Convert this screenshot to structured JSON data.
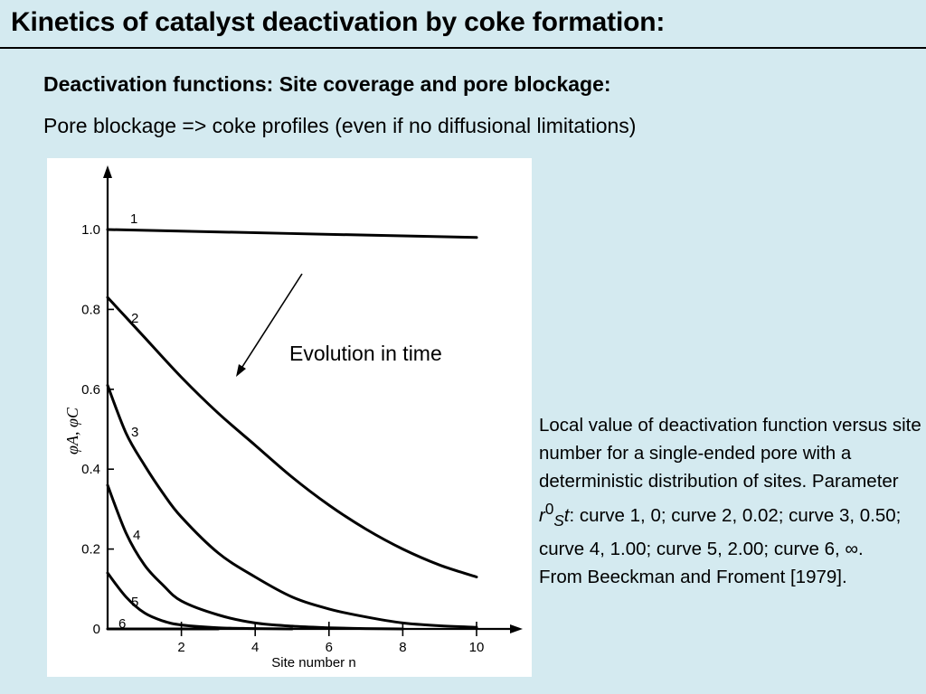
{
  "slide": {
    "title": "Kinetics of catalyst deactivation by coke formation:",
    "subtitle": "Deactivation functions: Site coverage and pore blockage:",
    "line2": "Pore blockage => coke profiles (even if no diffusional limitations)"
  },
  "annotation": {
    "arrow_label": "Evolution in time"
  },
  "caption": {
    "text_1": "Local value of deactivation function versus site number for a single-ended pore with a deterministic distribution of sites. Parameter ",
    "param_r": "r",
    "param_sup": "0",
    "param_sub": "S",
    "param_t": "t",
    "text_2": ": curve 1, 0; curve 2, 0.02; curve 3, 0.50; curve 4, 1.00; curve 5, 2.00; curve 6, ∞.",
    "source": "From Beeckman and Froment [1979]."
  },
  "chart_data": {
    "type": "line",
    "xlabel": "Site number n",
    "ylabel": "φA, φC",
    "xlim": [
      0,
      10
    ],
    "ylim": [
      0,
      1.0
    ],
    "x_ticks": [
      2,
      4,
      6,
      8,
      10
    ],
    "y_ticks": [
      0,
      0.2,
      0.4,
      0.6,
      0.8,
      1.0
    ],
    "x_tick_labels": [
      "2",
      "4",
      "6",
      "8",
      "10"
    ],
    "y_tick_labels": [
      "0",
      "0.2",
      "0.4",
      "0.6",
      "0.8",
      "1.0"
    ],
    "grid": false,
    "series": [
      {
        "name": "1",
        "x": [
          0,
          10
        ],
        "y": [
          1.0,
          0.98
        ]
      },
      {
        "name": "2",
        "x": [
          0,
          0.5,
          1,
          2,
          3,
          4,
          5,
          6,
          7,
          8,
          9,
          10
        ],
        "y": [
          0.83,
          0.78,
          0.73,
          0.63,
          0.54,
          0.46,
          0.38,
          0.31,
          0.25,
          0.2,
          0.16,
          0.13
        ]
      },
      {
        "name": "3",
        "x": [
          0,
          0.5,
          1,
          1.5,
          2,
          3,
          4,
          5,
          6,
          7,
          8,
          9,
          10
        ],
        "y": [
          0.61,
          0.49,
          0.41,
          0.34,
          0.28,
          0.19,
          0.13,
          0.08,
          0.05,
          0.03,
          0.015,
          0.008,
          0.004
        ]
      },
      {
        "name": "4",
        "x": [
          0,
          0.5,
          1,
          1.5,
          2,
          3,
          4,
          5,
          6,
          7,
          8
        ],
        "y": [
          0.36,
          0.24,
          0.16,
          0.11,
          0.07,
          0.035,
          0.015,
          0.007,
          0.003,
          0.001,
          0.0
        ]
      },
      {
        "name": "5",
        "x": [
          0,
          0.5,
          1,
          1.5,
          2,
          3,
          4,
          5
        ],
        "y": [
          0.14,
          0.08,
          0.04,
          0.02,
          0.01,
          0.003,
          0.001,
          0.0
        ]
      },
      {
        "name": "6",
        "x": [
          0,
          0.5,
          1,
          1.5,
          2,
          3
        ],
        "y": [
          0.0,
          0.0,
          0.0,
          0.0,
          0.0,
          0.0
        ]
      }
    ]
  }
}
